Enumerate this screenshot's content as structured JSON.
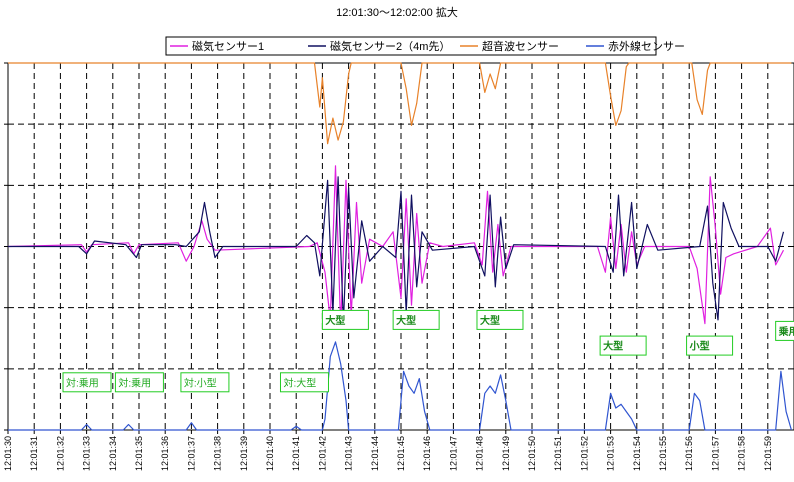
{
  "chart_data": {
    "type": "line",
    "title": "12:01:30〜12:02:00 拡大",
    "xlabel": "",
    "ylabel": "",
    "grid": true,
    "legend_position": "top",
    "x_range": [
      "12:01:30",
      "12:02:00"
    ],
    "y_range": [
      0,
      10
    ],
    "x_ticks": [
      "12:01:30",
      "12:01:31",
      "12:01:32",
      "12:01:33",
      "12:01:34",
      "12:01:35",
      "12:01:36",
      "12:01:37",
      "12:01:38",
      "12:01:39",
      "12:01:40",
      "12:01:41",
      "12:01:42",
      "12:01:43",
      "12:01:44",
      "12:01:45",
      "12:01:46",
      "12:01:47",
      "12:01:48",
      "12:01:49",
      "12:01:50",
      "12:01:51",
      "12:01:52",
      "12:01:53",
      "12:01:54",
      "12:01:55",
      "12:01:56",
      "12:01:57",
      "12:01:58",
      "12:01:59"
    ],
    "series": [
      {
        "name": "磁気センサー1",
        "color": "#e020e0",
        "points": [
          [
            0,
            5
          ],
          [
            2.8,
            5.05
          ],
          [
            3.0,
            4.85
          ],
          [
            3.2,
            5.05
          ],
          [
            4.6,
            5.1
          ],
          [
            4.8,
            4.8
          ],
          [
            5.0,
            5.05
          ],
          [
            6.5,
            5.1
          ],
          [
            6.8,
            4.6
          ],
          [
            7.1,
            5.0
          ],
          [
            7.4,
            5.7
          ],
          [
            7.6,
            5.2
          ],
          [
            7.9,
            4.9
          ],
          [
            11.5,
            5
          ],
          [
            11.8,
            5.1
          ],
          [
            12.1,
            4.3
          ],
          [
            12.3,
            3.0
          ],
          [
            12.5,
            7.2
          ],
          [
            12.7,
            2.8
          ],
          [
            12.9,
            6.8
          ],
          [
            13.1,
            3.1
          ],
          [
            13.3,
            6.2
          ],
          [
            13.5,
            4.0
          ],
          [
            13.8,
            5.2
          ],
          [
            14.3,
            5.0
          ],
          [
            14.7,
            5.4
          ],
          [
            15.0,
            3.6
          ],
          [
            15.2,
            6.3
          ],
          [
            15.4,
            3.4
          ],
          [
            15.6,
            5.9
          ],
          [
            15.8,
            4.0
          ],
          [
            16.1,
            5.1
          ],
          [
            16.6,
            5.0
          ],
          [
            17.8,
            5.1
          ],
          [
            18.1,
            4.5
          ],
          [
            18.3,
            6.5
          ],
          [
            18.5,
            4.3
          ],
          [
            18.7,
            5.6
          ],
          [
            18.9,
            4.2
          ],
          [
            19.2,
            5.0
          ],
          [
            21.5,
            5.0
          ],
          [
            22.5,
            5.0
          ],
          [
            22.8,
            4.3
          ],
          [
            23.0,
            5.8
          ],
          [
            23.2,
            4.4
          ],
          [
            23.4,
            5.6
          ],
          [
            23.6,
            4.3
          ],
          [
            23.8,
            5.4
          ],
          [
            24.0,
            4.5
          ],
          [
            24.3,
            5.0
          ],
          [
            26.0,
            5.0
          ],
          [
            26.3,
            4.4
          ],
          [
            26.6,
            2.9
          ],
          [
            26.8,
            6.9
          ],
          [
            27.0,
            5.5
          ],
          [
            27.2,
            3.7
          ],
          [
            27.4,
            4.7
          ],
          [
            27.7,
            4.8
          ],
          [
            28.6,
            5.0
          ],
          [
            29.1,
            5.5
          ],
          [
            29.3,
            4.5
          ],
          [
            29.6,
            4.9
          ]
        ]
      },
      {
        "name": "磁気センサー2（4m先）",
        "color": "#101060",
        "points": [
          [
            0,
            5
          ],
          [
            2.7,
            5.0
          ],
          [
            3.0,
            4.8
          ],
          [
            3.3,
            5.15
          ],
          [
            4.5,
            5.05
          ],
          [
            4.9,
            4.7
          ],
          [
            5.1,
            5.05
          ],
          [
            6.4,
            5.05
          ],
          [
            6.8,
            5.0
          ],
          [
            7.3,
            5.4
          ],
          [
            7.5,
            6.2
          ],
          [
            7.7,
            5.4
          ],
          [
            7.9,
            4.7
          ],
          [
            8.2,
            5.0
          ],
          [
            11.0,
            5.0
          ],
          [
            11.4,
            5.3
          ],
          [
            11.7,
            5.1
          ],
          [
            11.9,
            4.2
          ],
          [
            12.2,
            6.8
          ],
          [
            12.4,
            3.2
          ],
          [
            12.6,
            6.9
          ],
          [
            12.8,
            2.9
          ],
          [
            13.0,
            6.6
          ],
          [
            13.2,
            3.6
          ],
          [
            13.5,
            5.7
          ],
          [
            13.8,
            4.6
          ],
          [
            14.3,
            5.0
          ],
          [
            14.8,
            4.7
          ],
          [
            15.0,
            6.5
          ],
          [
            15.2,
            3.2
          ],
          [
            15.4,
            6.4
          ],
          [
            15.6,
            3.9
          ],
          [
            15.8,
            5.4
          ],
          [
            16.2,
            4.9
          ],
          [
            17.8,
            5.0
          ],
          [
            18.2,
            4.2
          ],
          [
            18.4,
            6.4
          ],
          [
            18.6,
            3.9
          ],
          [
            18.8,
            5.8
          ],
          [
            19.0,
            4.4
          ],
          [
            19.3,
            5.05
          ],
          [
            22.8,
            5.0
          ],
          [
            23.1,
            4.3
          ],
          [
            23.3,
            6.4
          ],
          [
            23.5,
            4.2
          ],
          [
            23.8,
            6.2
          ],
          [
            24.0,
            4.4
          ],
          [
            24.4,
            5.6
          ],
          [
            24.8,
            4.9
          ],
          [
            26.4,
            5.0
          ],
          [
            26.7,
            6.1
          ],
          [
            26.9,
            4.0
          ],
          [
            27.1,
            3.0
          ],
          [
            27.3,
            6.2
          ],
          [
            27.6,
            5.5
          ],
          [
            27.9,
            5.0
          ],
          [
            29.0,
            5.0
          ],
          [
            29.3,
            4.6
          ],
          [
            29.6,
            5.4
          ]
        ]
      },
      {
        "name": "超音波センサー",
        "color": "#e8822a",
        "points": [
          [
            0,
            10
          ],
          [
            11.7,
            10
          ],
          [
            11.9,
            8.8
          ],
          [
            12.0,
            9.6
          ],
          [
            12.2,
            7.8
          ],
          [
            12.4,
            8.5
          ],
          [
            12.6,
            7.9
          ],
          [
            12.8,
            8.4
          ],
          [
            13.0,
            9.7
          ],
          [
            13.1,
            10
          ],
          [
            15.0,
            10
          ],
          [
            15.2,
            9.3
          ],
          [
            15.4,
            8.3
          ],
          [
            15.6,
            8.9
          ],
          [
            15.8,
            10
          ],
          [
            18.0,
            10
          ],
          [
            18.2,
            9.2
          ],
          [
            18.4,
            9.7
          ],
          [
            18.6,
            9.3
          ],
          [
            18.8,
            10
          ],
          [
            22.8,
            10
          ],
          [
            23.0,
            9.1
          ],
          [
            23.2,
            8.3
          ],
          [
            23.4,
            8.7
          ],
          [
            23.6,
            9.9
          ],
          [
            23.7,
            10
          ],
          [
            26.1,
            10
          ],
          [
            26.3,
            9.0
          ],
          [
            26.5,
            8.6
          ],
          [
            26.7,
            9.8
          ],
          [
            26.8,
            10
          ],
          [
            29.9,
            10
          ]
        ]
      },
      {
        "name": "赤外線センサー",
        "color": "#3055d0",
        "points": [
          [
            0,
            0
          ],
          [
            2.8,
            0
          ],
          [
            3.0,
            0.15
          ],
          [
            3.2,
            0.0
          ],
          [
            4.4,
            0
          ],
          [
            4.6,
            0.15
          ],
          [
            4.8,
            0
          ],
          [
            6.8,
            0
          ],
          [
            7.0,
            0.2
          ],
          [
            7.2,
            0
          ],
          [
            10.8,
            0
          ],
          [
            11.0,
            0.1
          ],
          [
            11.2,
            0
          ],
          [
            12.0,
            0
          ],
          [
            12.1,
            0.3
          ],
          [
            12.3,
            2.0
          ],
          [
            12.5,
            2.4
          ],
          [
            12.7,
            1.8
          ],
          [
            12.9,
            0.8
          ],
          [
            13.0,
            0
          ],
          [
            14.9,
            0
          ],
          [
            15.1,
            1.6
          ],
          [
            15.3,
            1.2
          ],
          [
            15.5,
            1.0
          ],
          [
            15.7,
            1.4
          ],
          [
            15.9,
            0.5
          ],
          [
            16.1,
            0
          ],
          [
            18.0,
            0
          ],
          [
            18.2,
            1.0
          ],
          [
            18.4,
            1.2
          ],
          [
            18.6,
            1.0
          ],
          [
            18.8,
            1.5
          ],
          [
            19.0,
            0.8
          ],
          [
            19.2,
            0
          ],
          [
            22.8,
            0
          ],
          [
            23.0,
            1.0
          ],
          [
            23.2,
            0.6
          ],
          [
            23.4,
            0.7
          ],
          [
            23.6,
            0.5
          ],
          [
            23.8,
            0.3
          ],
          [
            24.0,
            0
          ],
          [
            26.0,
            0
          ],
          [
            26.2,
            1.0
          ],
          [
            26.4,
            0.8
          ],
          [
            26.6,
            0
          ],
          [
            29.3,
            0
          ],
          [
            29.5,
            1.6
          ],
          [
            29.7,
            0.5
          ],
          [
            29.9,
            0
          ]
        ]
      }
    ],
    "annotations": [
      {
        "text": "対:乗用",
        "x": 2.1,
        "y": 1.3,
        "bold": false
      },
      {
        "text": "対:乗用",
        "x": 4.1,
        "y": 1.3,
        "bold": false
      },
      {
        "text": "対:小型",
        "x": 6.6,
        "y": 1.3,
        "bold": false
      },
      {
        "text": "対:大型",
        "x": 10.4,
        "y": 1.3,
        "bold": false
      },
      {
        "text": "大型",
        "x": 12.0,
        "y": 3.0,
        "bold": true
      },
      {
        "text": "大型",
        "x": 14.7,
        "y": 3.0,
        "bold": true
      },
      {
        "text": "大型",
        "x": 17.9,
        "y": 3.0,
        "bold": true
      },
      {
        "text": "大型",
        "x": 22.6,
        "y": 2.3,
        "bold": true
      },
      {
        "text": "小型",
        "x": 25.9,
        "y": 2.3,
        "bold": true
      },
      {
        "text": "乗用",
        "x": 29.3,
        "y": 2.7,
        "bold": true
      }
    ],
    "annotation_style": {
      "border": "#22cc22",
      "text_color": "#22aa22"
    }
  }
}
